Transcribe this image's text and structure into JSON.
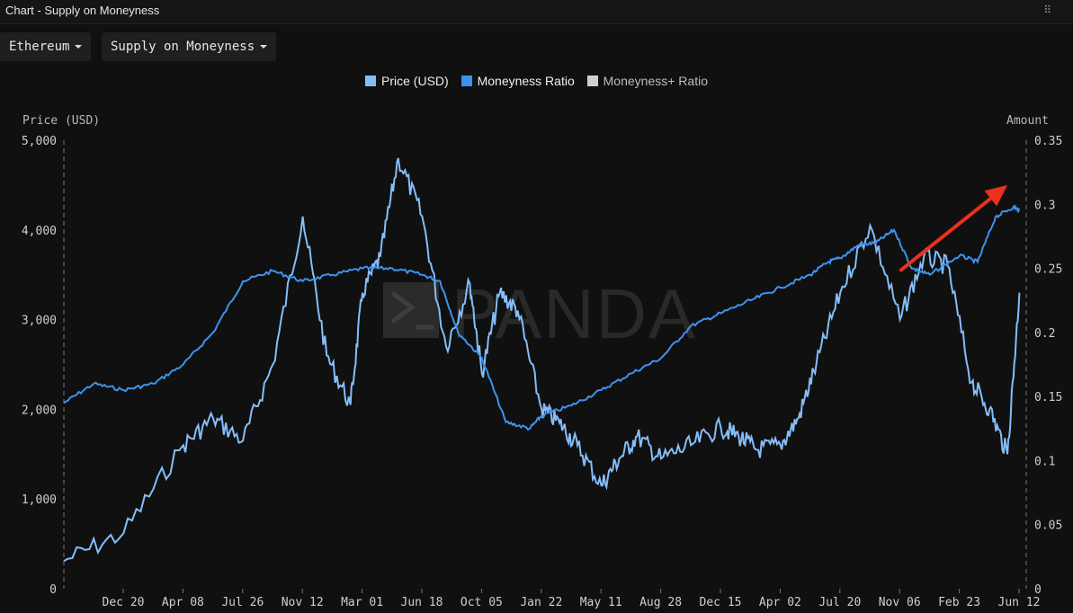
{
  "window": {
    "title": "Chart - Supply on Moneyness",
    "grip_icon": "drag-handle-icon"
  },
  "toolbar": {
    "asset_label": "Ethereum",
    "metric_label": "Supply on Moneyness"
  },
  "legend": [
    {
      "label": "Price (USD)",
      "color": "#85bdf9"
    },
    {
      "label": "Moneyness Ratio",
      "color": "#3d93ee"
    },
    {
      "label": "Moneyness+ Ratio",
      "color": "#cfcfcf"
    }
  ],
  "watermark": "PANDA",
  "chart_data": {
    "type": "line",
    "left_axis": {
      "label": "Price (USD)",
      "range": [
        0,
        5000
      ],
      "ticks": [
        "0",
        "1,000",
        "2,000",
        "3,000",
        "4,000",
        "5,000"
      ]
    },
    "right_axis": {
      "label": "Amount",
      "range": [
        0,
        0.35
      ],
      "ticks": [
        "0",
        "0.05",
        "0.1",
        "0.15",
        "0.2",
        "0.25",
        "0.3",
        "0.35"
      ]
    },
    "x_ticks": [
      "Dec 20",
      "Apr 08",
      "Jul 26",
      "Nov 12",
      "Mar 01",
      "Jun 18",
      "Oct 05",
      "Jan 22",
      "May 11",
      "Aug 28",
      "Dec 15",
      "Apr 02",
      "Jul 20",
      "Nov 06",
      "Feb 23",
      "Jun 12"
    ],
    "grid": false,
    "legend_position": "top-center",
    "series": [
      {
        "name": "Price (USD)",
        "axis": "left",
        "color": "#85bdf9",
        "x": [
          0,
          1,
          2,
          2.5,
          3,
          3.5,
          4,
          4.4,
          4.8,
          5,
          5.3,
          5.6,
          6,
          6.4,
          6.8,
          7,
          7.3,
          7.6,
          8,
          8.3,
          8.6,
          9,
          9.3,
          9.6,
          10,
          10.5,
          11,
          11.3,
          11.6,
          12,
          12.3,
          12.6,
          13,
          13.5,
          14,
          14.4,
          14.8,
          15.2,
          15.5,
          15.8,
          16
        ],
        "values": [
          310,
          620,
          1600,
          1900,
          1650,
          2500,
          4150,
          2600,
          2050,
          3300,
          3700,
          4800,
          4150,
          2700,
          3400,
          2400,
          3300,
          3100,
          2000,
          1850,
          1600,
          1150,
          1450,
          1700,
          1450,
          1600,
          1800,
          1700,
          1550,
          1600,
          1900,
          2500,
          3300,
          4050,
          3000,
          3700,
          3600,
          2300,
          2000,
          1500,
          3300
        ]
      },
      {
        "name": "Moneyness Ratio",
        "axis": "right",
        "color": "#3d93ee",
        "x": [
          0,
          0.5,
          1,
          1.5,
          2,
          2.5,
          3,
          3.5,
          4,
          4.5,
          5,
          5.5,
          6,
          6.3,
          6.6,
          7,
          7.4,
          7.8,
          8,
          8.5,
          9,
          9.5,
          10,
          10.5,
          11,
          11.5,
          12,
          12.5,
          12.8,
          13,
          13.3,
          13.6,
          13.9,
          14.2,
          14.5,
          15,
          15.3,
          15.6,
          15.9,
          16
        ],
        "values": [
          0.145,
          0.16,
          0.155,
          0.16,
          0.175,
          0.2,
          0.24,
          0.248,
          0.24,
          0.245,
          0.25,
          0.25,
          0.245,
          0.24,
          0.2,
          0.18,
          0.13,
          0.125,
          0.135,
          0.143,
          0.155,
          0.168,
          0.18,
          0.205,
          0.215,
          0.225,
          0.235,
          0.245,
          0.255,
          0.258,
          0.268,
          0.27,
          0.28,
          0.25,
          0.245,
          0.26,
          0.255,
          0.29,
          0.298,
          0.295
        ]
      },
      {
        "name": "Moneyness+ Ratio",
        "axis": "right",
        "color": "#cfcfcf",
        "x": [],
        "values": []
      }
    ],
    "annotations": [
      {
        "type": "arrow",
        "color": "#e8321e",
        "x": [
          14.0,
          15.8
        ],
        "values": [
          0.248,
          0.315
        ],
        "axis": "right"
      }
    ]
  }
}
